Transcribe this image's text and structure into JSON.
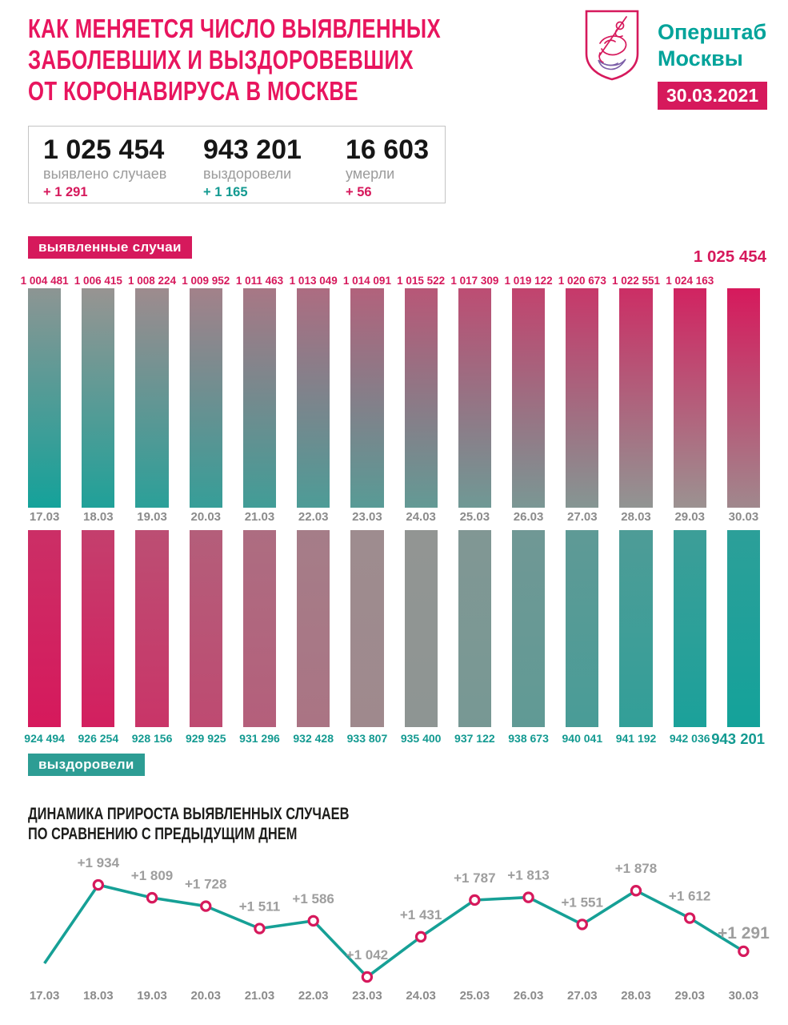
{
  "header": {
    "title_lines": [
      "КАК МЕНЯЕТСЯ ЧИСЛО ВЫЯВЛЕННЫХ",
      "ЗАБОЛЕВШИХ И ВЫЗДОРОВЕВШИХ",
      "ОТ КОРОНАВИРУСА В МОСКВЕ"
    ],
    "brand_line1": "Оперштаб",
    "brand_line2": "Москвы",
    "date": "30.03.2021"
  },
  "stats": {
    "confirmed": {
      "value": "1 025 454",
      "label": "выявлено случаев",
      "delta": "+ 1 291",
      "delta_color": "pink"
    },
    "recovered": {
      "value": "943 201",
      "label": "выздоровели",
      "delta": "+ 1 165",
      "delta_color": "teal"
    },
    "deaths": {
      "value": "16 603",
      "label": "умерли",
      "delta": "+ 56",
      "delta_color": "pink"
    }
  },
  "colors": {
    "pink": "#d6195c",
    "pink_title": "#e8155e",
    "teal": "#16a096",
    "teal_badge": "#2d9d94",
    "teal_text": "#139a91",
    "gray_label": "#9e9e9e",
    "gray_dates": "#8b8b8b",
    "ink": "#1d1d1b"
  },
  "chart_data": [
    {
      "type": "bar",
      "title": "выявленные случаи",
      "categories": [
        "17.03",
        "18.03",
        "19.03",
        "20.03",
        "21.03",
        "22.03",
        "23.03",
        "24.03",
        "25.03",
        "26.03",
        "27.03",
        "28.03",
        "29.03",
        "30.03"
      ],
      "values": [
        1004481,
        1006415,
        1008224,
        1009952,
        1011463,
        1013049,
        1014091,
        1015522,
        1017309,
        1019122,
        1020673,
        1022551,
        1024163,
        1025454
      ],
      "value_labels": [
        "1 004 481",
        "1 006 415",
        "1 008 224",
        "1 009 952",
        "1 011 463",
        "1 013 049",
        "1 014 091",
        "1 015 522",
        "1 017 309",
        "1 019 122",
        "1 020 673",
        "1 022 551",
        "1 024 163",
        "1 025 454"
      ],
      "gradient": "teal-to-pink",
      "legend_position": "top-left"
    },
    {
      "type": "bar",
      "title": "выздоровели",
      "categories": [
        "17.03",
        "18.03",
        "19.03",
        "20.03",
        "21.03",
        "22.03",
        "23.03",
        "24.03",
        "25.03",
        "26.03",
        "27.03",
        "28.03",
        "29.03",
        "30.03"
      ],
      "values": [
        924494,
        926254,
        928156,
        929925,
        931296,
        932428,
        933807,
        935400,
        937122,
        938673,
        940041,
        941192,
        942036,
        943201
      ],
      "value_labels": [
        "924 494",
        "926 254",
        "928 156",
        "929 925",
        "931 296",
        "932 428",
        "933 807",
        "935 400",
        "937 122",
        "938 673",
        "940 041",
        "941 192",
        "942 036",
        "943 201"
      ],
      "gradient": "pink-to-teal",
      "orientation": "hanging",
      "legend_position": "bottom-left"
    },
    {
      "type": "line",
      "title": "ДИНАМИКА ПРИРОСТА ВЫЯВЛЕННЫХ СЛУЧАЕВ ПО СРАВНЕНИЮ С ПРЕДЫДУЩИМ ДНЕМ",
      "title_lines": [
        "ДИНАМИКА ПРИРОСТА ВЫЯВЛЕННЫХ СЛУЧАЕВ",
        "ПО СРАВНЕНИЮ С ПРЕДЫДУЩИМ ДНЕМ"
      ],
      "categories": [
        "17.03",
        "18.03",
        "19.03",
        "20.03",
        "21.03",
        "22.03",
        "23.03",
        "24.03",
        "25.03",
        "26.03",
        "27.03",
        "28.03",
        "29.03",
        "30.03"
      ],
      "values": [
        null,
        1934,
        1809,
        1728,
        1511,
        1586,
        1042,
        1431,
        1787,
        1813,
        1551,
        1878,
        1612,
        1291
      ],
      "point_labels": [
        "",
        "+1 934",
        "+1 809",
        "+1 728",
        "+1 511",
        "+1 586",
        "+1 042",
        "+1 431",
        "+1 787",
        "+1 813",
        "+1 551",
        "+1 878",
        "+1 612",
        "+1 291"
      ],
      "ylim": [
        1000,
        2000
      ],
      "grid": false,
      "marker": "circle-ring"
    }
  ]
}
